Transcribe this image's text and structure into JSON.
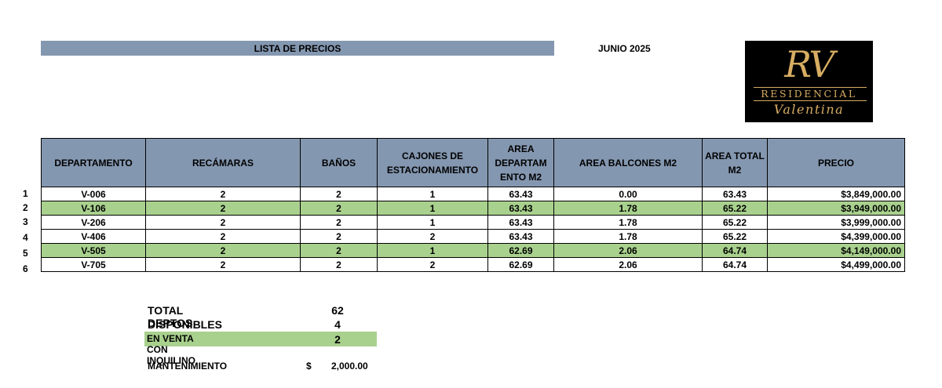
{
  "header": {
    "title": "LISTA DE PRECIOS",
    "date": "JUNIO 2025",
    "logo": {
      "monogram": "RV",
      "line1": "RESIDENCIAL",
      "line2": "Valentina"
    }
  },
  "table": {
    "columns": [
      "DEPARTAMENTO",
      "RECÁMARAS",
      "BAÑOS",
      "CAJONES   DE ESTACIONAMIENTO",
      "AREA DEPARTAM ENTO M2",
      "AREA BALCONES M2",
      "AREA TOTAL M2",
      "PRECIO"
    ],
    "rows": [
      {
        "num": "1",
        "depto": "V-006",
        "rec": "2",
        "banos": "2",
        "cajones": "1",
        "area_depto": "63.43",
        "area_balcon": "0.00",
        "area_total": "63.43",
        "precio": "$3,849,000.00",
        "highlight": false
      },
      {
        "num": "2",
        "depto": "V-106",
        "rec": "2",
        "banos": "2",
        "cajones": "1",
        "area_depto": "63.43",
        "area_balcon": "1.78",
        "area_total": "65.22",
        "precio": "$3,949,000.00",
        "highlight": true
      },
      {
        "num": "3",
        "depto": "V-206",
        "rec": "2",
        "banos": "2",
        "cajones": "1",
        "area_depto": "63.43",
        "area_balcon": "1.78",
        "area_total": "65.22",
        "precio": "$3,999,000.00",
        "highlight": false
      },
      {
        "num": "4",
        "depto": "V-406",
        "rec": "2",
        "banos": "2",
        "cajones": "2",
        "area_depto": "63.43",
        "area_balcon": "1.78",
        "area_total": "65.22",
        "precio": "$4,399,000.00",
        "highlight": false
      },
      {
        "num": "5",
        "depto": "V-505",
        "rec": "2",
        "banos": "2",
        "cajones": "1",
        "area_depto": "62.69",
        "area_balcon": "2.06",
        "area_total": "64.74",
        "precio": "$4,149,000.00",
        "highlight": true
      },
      {
        "num": "6",
        "depto": "V-705",
        "rec": "2",
        "banos": "2",
        "cajones": "2",
        "area_depto": "62.69",
        "area_balcon": "2.06",
        "area_total": "64.74",
        "precio": "$4,499,000.00",
        "highlight": false
      }
    ]
  },
  "summary": {
    "total_label": "TOTAL DEPTOS",
    "total_value": "62",
    "disponibles_label": "DISPONIBLES VACIOS",
    "disponibles_value": "4",
    "inquilino_label": "EN VENTA CON INQUILINO",
    "inquilino_value": "2",
    "mantenimiento_label": "MANTENIMIENTO",
    "mantenimiento_currency": "$",
    "mantenimiento_value": "2,000.00"
  },
  "colors": {
    "header_bg": "#8497b0",
    "highlight_bg": "#a9d18e",
    "logo_gold": "#d7ad63"
  }
}
